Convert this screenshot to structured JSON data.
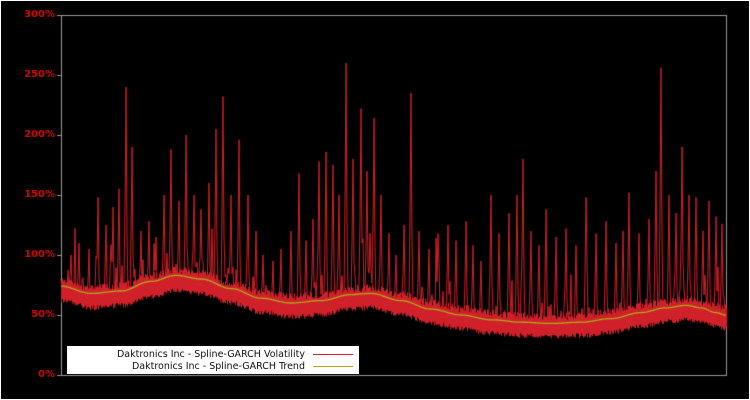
{
  "page": {
    "background": "#000000",
    "frame_color": "#ffffff"
  },
  "chart_data": {
    "type": "line",
    "title": "",
    "xlabel": "",
    "ylabel": "",
    "ylim": [
      0,
      300
    ],
    "grid": false,
    "x_axis": {
      "tick_labels_visible": false
    },
    "axis_label_color": "#d40000",
    "plot_border_color": "#9a9a9a",
    "background": "#000000",
    "legend": {
      "position": "bottom-left",
      "background": "#ffffff",
      "text_color": "#111111"
    },
    "y_ticks": [
      {
        "value": 0,
        "label": "0%"
      },
      {
        "value": 50,
        "label": "50%"
      },
      {
        "value": 100,
        "label": "100%"
      },
      {
        "value": 150,
        "label": "150%"
      },
      {
        "value": 200,
        "label": "200%"
      },
      {
        "value": 250,
        "label": "250%"
      },
      {
        "value": 300,
        "label": "300%"
      }
    ],
    "series": [
      {
        "name": "Daktronics Inc - Spline-GARCH Volatility",
        "type": "noisy-line",
        "color": "#d0202a",
        "baseline_scale": 0.97,
        "noise": {
          "band_low": 12,
          "band_high": 8,
          "bump_prob": 0.3,
          "bump_max": 18,
          "spike_prob": 0.1,
          "tall_spike_prob": 0.02
        },
        "spikiness_keypoints": [
          [
            0,
            55
          ],
          [
            0.1,
            75
          ],
          [
            0.2,
            65
          ],
          [
            0.3,
            40
          ],
          [
            0.35,
            70
          ],
          [
            0.45,
            80
          ],
          [
            0.5,
            50
          ],
          [
            0.6,
            40
          ],
          [
            0.7,
            45
          ],
          [
            0.8,
            40
          ],
          [
            0.88,
            55
          ],
          [
            1,
            50
          ]
        ],
        "spikes": [
          [
            0.015,
            100
          ],
          [
            0.027,
            110
          ],
          [
            0.042,
            105
          ],
          [
            0.056,
            148
          ],
          [
            0.068,
            125
          ],
          [
            0.078,
            140
          ],
          [
            0.087,
            155
          ],
          [
            0.098,
            240
          ],
          [
            0.107,
            190
          ],
          [
            0.12,
            120
          ],
          [
            0.132,
            128
          ],
          [
            0.143,
            115
          ],
          [
            0.155,
            150
          ],
          [
            0.165,
            188
          ],
          [
            0.177,
            145
          ],
          [
            0.188,
            200
          ],
          [
            0.2,
            150
          ],
          [
            0.211,
            138
          ],
          [
            0.223,
            160
          ],
          [
            0.233,
            205
          ],
          [
            0.244,
            232
          ],
          [
            0.256,
            150
          ],
          [
            0.268,
            196
          ],
          [
            0.281,
            150
          ],
          [
            0.293,
            120
          ],
          [
            0.304,
            100
          ],
          [
            0.319,
            95
          ],
          [
            0.331,
            105
          ],
          [
            0.346,
            120
          ],
          [
            0.358,
            168
          ],
          [
            0.368,
            112
          ],
          [
            0.379,
            130
          ],
          [
            0.388,
            178
          ],
          [
            0.398,
            186
          ],
          [
            0.409,
            175
          ],
          [
            0.418,
            150
          ],
          [
            0.429,
            260
          ],
          [
            0.439,
            180
          ],
          [
            0.451,
            222
          ],
          [
            0.46,
            170
          ],
          [
            0.471,
            214
          ],
          [
            0.481,
            150
          ],
          [
            0.493,
            118
          ],
          [
            0.504,
            100
          ],
          [
            0.516,
            125
          ],
          [
            0.526,
            235
          ],
          [
            0.538,
            120
          ],
          [
            0.553,
            105
          ],
          [
            0.567,
            118
          ],
          [
            0.582,
            125
          ],
          [
            0.594,
            112
          ],
          [
            0.609,
            128
          ],
          [
            0.62,
            108
          ],
          [
            0.632,
            95
          ],
          [
            0.647,
            150
          ],
          [
            0.659,
            118
          ],
          [
            0.674,
            135
          ],
          [
            0.686,
            150
          ],
          [
            0.695,
            180
          ],
          [
            0.707,
            120
          ],
          [
            0.719,
            108
          ],
          [
            0.729,
            138
          ],
          [
            0.744,
            115
          ],
          [
            0.759,
            122
          ],
          [
            0.774,
            108
          ],
          [
            0.789,
            148
          ],
          [
            0.805,
            118
          ],
          [
            0.82,
            128
          ],
          [
            0.835,
            110
          ],
          [
            0.845,
            120
          ],
          [
            0.854,
            152
          ],
          [
            0.869,
            118
          ],
          [
            0.884,
            130
          ],
          [
            0.895,
            170
          ],
          [
            0.902,
            256
          ],
          [
            0.914,
            150
          ],
          [
            0.925,
            135
          ],
          [
            0.934,
            190
          ],
          [
            0.944,
            150
          ],
          [
            0.955,
            148
          ],
          [
            0.965,
            120
          ],
          [
            0.974,
            145
          ],
          [
            0.985,
            132
          ],
          [
            0.994,
            126
          ]
        ]
      },
      {
        "name": "Daktronics Inc - Spline-GARCH Trend",
        "type": "smooth-line",
        "color": "#b0a818",
        "keypoints": [
          [
            0,
            74
          ],
          [
            0.045,
            68
          ],
          [
            0.09,
            70
          ],
          [
            0.135,
            78
          ],
          [
            0.173,
            83
          ],
          [
            0.211,
            80
          ],
          [
            0.256,
            72
          ],
          [
            0.301,
            64
          ],
          [
            0.346,
            60
          ],
          [
            0.391,
            62
          ],
          [
            0.436,
            67
          ],
          [
            0.466,
            68
          ],
          [
            0.511,
            62
          ],
          [
            0.556,
            55
          ],
          [
            0.602,
            50
          ],
          [
            0.647,
            46
          ],
          [
            0.692,
            44
          ],
          [
            0.737,
            43
          ],
          [
            0.782,
            44
          ],
          [
            0.827,
            47
          ],
          [
            0.872,
            52
          ],
          [
            0.91,
            56
          ],
          [
            0.94,
            58
          ],
          [
            0.962,
            56
          ],
          [
            0.985,
            52
          ],
          [
            1,
            50
          ]
        ]
      }
    ]
  }
}
